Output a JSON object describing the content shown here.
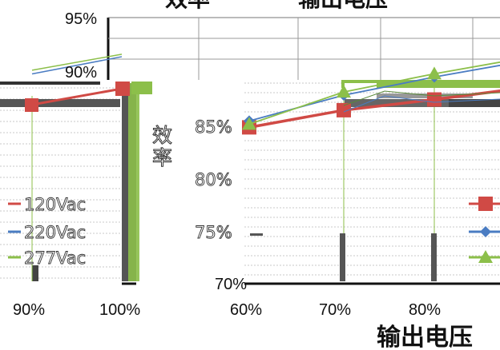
{
  "title": {
    "left": "效率",
    "right": "输出电压"
  },
  "chart_data": [
    {
      "type": "line",
      "xlabel": "输出电压",
      "ylabel": "效率",
      "x_tick_labels": [
        "60%",
        "70%",
        "80%",
        "90%",
        "100%"
      ],
      "y_tick_labels": [
        "70%",
        "75%",
        "80%",
        "85%",
        "90%",
        "95%"
      ],
      "ylim": [
        70,
        95
      ],
      "series": [
        {
          "name": "120Vac",
          "color": "#d04a45",
          "marker": "square",
          "x": [
            60,
            70,
            80,
            90,
            100
          ],
          "y": [
            84.6,
            86.2,
            87.2,
            88.3,
            89.6
          ]
        },
        {
          "name": "220Vac",
          "color": "#4a7cc2",
          "marker": "diamond",
          "x": [
            60,
            70,
            80,
            90,
            100
          ],
          "y": [
            85.2,
            87.6,
            89.3,
            90.8,
            92.2
          ]
        },
        {
          "name": "277Vac",
          "color": "#8cbf4a",
          "marker": "triangle",
          "x": [
            60,
            70,
            80,
            90,
            100
          ],
          "y": [
            84.9,
            87.9,
            89.6,
            91.1,
            92.4
          ]
        }
      ],
      "grid": true,
      "legend": "right"
    }
  ]
}
